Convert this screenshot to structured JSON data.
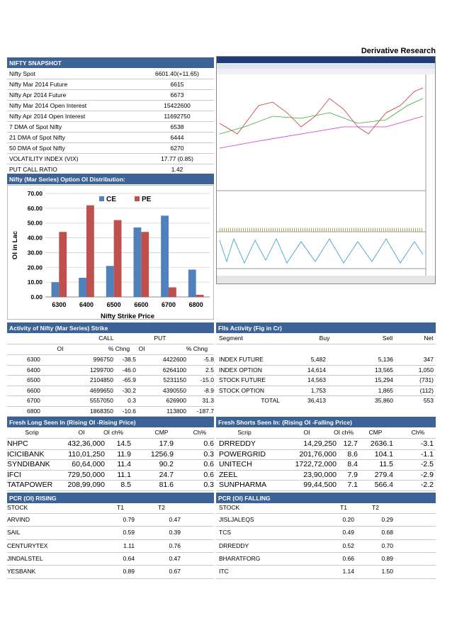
{
  "header": {
    "title": "Derivative Research"
  },
  "snapshot": {
    "title": "NIFTY SNAPSHOT",
    "rows": [
      [
        "Nifty Spot",
        "6601.40(+11.65)"
      ],
      [
        "Nifty Mar 2014 Future",
        "6615"
      ],
      [
        "Nifty Apr 2014 Future",
        "6673"
      ],
      [
        "Nifty Mar 2014 Open Interest",
        "15422600"
      ],
      [
        "Nifty Apr 2014 Open Interest",
        "11692750"
      ],
      [
        "7 DMA of Spot Nifty",
        "6538"
      ],
      [
        "21 DMA of Spot Nifty",
        "6444"
      ],
      [
        "50 DMA of Spot Nifty",
        "6270"
      ],
      [
        "VOLATILITY INDEX (VIX)",
        "17.77 (0.85)"
      ],
      [
        "PUT CALL RATIO",
        "1.42"
      ]
    ]
  },
  "chart_data": {
    "type": "bar",
    "title": "Nifty (Mar Series) Option OI Distribution:",
    "categories": [
      "6300",
      "6400",
      "6500",
      "6600",
      "6700",
      "6800"
    ],
    "series": [
      {
        "name": "CE",
        "color": "#4f81bd",
        "values": [
          10,
          13,
          21,
          47,
          55,
          18.5
        ]
      },
      {
        "name": "PE",
        "color": "#c0504d",
        "values": [
          44,
          62,
          52,
          44,
          6.5,
          1.5
        ]
      }
    ],
    "ylim": [
      0,
      70
    ],
    "yticks": [
      {
        "value": 0,
        "label": "0.00"
      },
      {
        "value": 10,
        "label": "10.00"
      },
      {
        "value": 20,
        "label": "20.00"
      },
      {
        "value": 30,
        "label": "30.00"
      },
      {
        "value": 40,
        "label": "40.00"
      },
      {
        "value": 50,
        "label": "50.00"
      },
      {
        "value": 60,
        "label": "60.00"
      },
      {
        "value": 70,
        "label": "70.00"
      }
    ],
    "grid": true,
    "xlabel": "Nifty Strike Price",
    "ylabel": "OI in Lac",
    "legend": "top"
  },
  "activity": {
    "title": "Activity of Nifty (Mar Series) Strike",
    "groups": [
      "CALL",
      "PUT"
    ],
    "columns": [
      "OI",
      "% Chng",
      "OI",
      "% Chng"
    ],
    "rows": [
      [
        "6300",
        "996750",
        "-38.5",
        "4422600",
        "-5.8"
      ],
      [
        "6400",
        "1299700",
        "-46.0",
        "6264100",
        "2.5"
      ],
      [
        "6500",
        "2104850",
        "-65.9",
        "5231150",
        "-15.0"
      ],
      [
        "6600",
        "4699650",
        "-30.2",
        "4390550",
        "-8.9"
      ],
      [
        "6700",
        "5557050",
        "0.3",
        "626900",
        "31.3"
      ],
      [
        "6800",
        "1868350",
        "-10.6",
        "113800",
        "-187.7"
      ]
    ]
  },
  "fii": {
    "title": "FIIs Activity (Fig in Cr)",
    "columns": [
      "Segment",
      "Buy",
      "Sell",
      "Net"
    ],
    "rows": [
      [
        "INDEX FUTURE",
        "5,482",
        "5,136",
        "347"
      ],
      [
        "INDEX OPTION",
        "14,614",
        "13,565",
        "1,050"
      ],
      [
        "STOCK FUTURE",
        "14,563",
        "15,294",
        "(731)"
      ],
      [
        "STOCK OPTION",
        "1,753",
        "1,865",
        "(112)"
      ]
    ],
    "total": [
      "TOTAL",
      "36,413",
      "35,860",
      "553"
    ]
  },
  "fresh_long": {
    "title": "Fresh Long Seen In (Rising OI -Rising Price)",
    "columns": [
      "Scrip",
      "OI",
      "OI ch%",
      "CMP",
      "Ch%"
    ],
    "rows": [
      [
        "NHPC",
        "432,36,000",
        "14.5",
        "17.9",
        "0.6"
      ],
      [
        "ICICIBANK",
        "110,01,250",
        "11.9",
        "1256.9",
        "0.3"
      ],
      [
        "SYNDIBANK",
        "60,64,000",
        "11.4",
        "90.2",
        "0.6"
      ],
      [
        "IFCI",
        "729,50,000",
        "11.1",
        "24.7",
        "0.6"
      ],
      [
        "TATAPOWER",
        "208,99,090",
        "8.5",
        "81.6",
        "0.3"
      ]
    ]
  },
  "fresh_short": {
    "title": "Fresh Shorts Seen In: (Rising OI -Falling Price)",
    "columns": [
      "Scrip",
      "OI",
      "OI ch%",
      "CMP",
      "Ch%"
    ],
    "rows": [
      [
        "DRREDDY",
        "14,29,250",
        "12.7",
        "2636.1",
        "-3.1"
      ],
      [
        "POWERGRID",
        "201,76,000",
        "8.6",
        "104.1",
        "-1.1"
      ],
      [
        "UNITECH",
        "1722,72,000",
        "8.4",
        "11.5",
        "-2.5"
      ],
      [
        "ZEEL",
        "23,90,000",
        "7.9",
        "279.4",
        "-2.9"
      ],
      [
        "SUNPHARMA",
        "99,44,500",
        "7.1",
        "566.4",
        "-2.2"
      ]
    ]
  },
  "pcr_rising": {
    "title": "PCR (OI)  RISING",
    "columns": [
      "STOCK",
      "T1",
      "T2"
    ],
    "rows": [
      [
        "ARVIND",
        "0.79",
        "0.47"
      ],
      [
        "SAIL",
        "0.59",
        "0.39"
      ],
      [
        "CENTURYTEX",
        "1.11",
        "0.76"
      ],
      [
        "JINDALSTEL",
        "0.64",
        "0.47"
      ],
      [
        "YESBANK",
        "0.89",
        "0.67"
      ]
    ]
  },
  "pcr_falling": {
    "title": "PCR (OI)   FALLING",
    "columns": [
      "STOCK",
      "T1",
      "T2"
    ],
    "rows": [
      [
        "JISLJALEQS",
        "0.20",
        "0.29"
      ],
      [
        "TCS",
        "0.49",
        "0.68"
      ],
      [
        "DRREDDY",
        "0.52",
        "0.70"
      ],
      [
        "BHARATFORG",
        "0.66",
        "0.89"
      ],
      [
        "ITC",
        "1.14",
        "1.50"
      ]
    ]
  }
}
